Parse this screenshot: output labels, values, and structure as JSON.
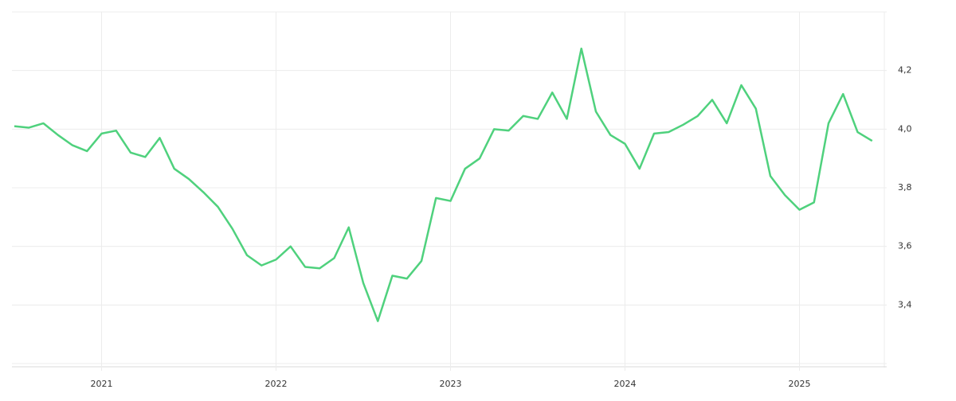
{
  "chart_data": {
    "type": "line",
    "x": [
      "2020-07",
      "2020-08",
      "2020-09",
      "2020-10",
      "2020-11",
      "2020-12",
      "2021-01",
      "2021-02",
      "2021-03",
      "2021-04",
      "2021-05",
      "2021-06",
      "2021-07",
      "2021-08",
      "2021-09",
      "2021-10",
      "2021-11",
      "2021-12",
      "2022-01",
      "2022-02",
      "2022-03",
      "2022-04",
      "2022-05",
      "2022-06",
      "2022-07",
      "2022-08",
      "2022-09",
      "2022-10",
      "2022-11",
      "2022-12",
      "2023-01",
      "2023-02",
      "2023-03",
      "2023-04",
      "2023-05",
      "2023-06",
      "2023-07",
      "2023-08",
      "2023-09",
      "2023-10",
      "2023-11",
      "2023-12",
      "2024-01",
      "2024-02",
      "2024-03",
      "2024-04",
      "2024-05",
      "2024-06",
      "2024-07",
      "2024-08",
      "2024-09",
      "2024-10",
      "2024-11",
      "2024-12",
      "2025-01",
      "2025-02",
      "2025-03",
      "2025-04",
      "2025-05",
      "2025-06"
    ],
    "series": [
      {
        "color": "#4fd17d",
        "values": [
          4.01,
          4.005,
          4.02,
          3.98,
          3.945,
          3.925,
          3.985,
          3.995,
          3.92,
          3.905,
          3.97,
          3.865,
          3.83,
          3.785,
          3.735,
          3.66,
          3.57,
          3.535,
          3.555,
          3.6,
          3.53,
          3.525,
          3.56,
          3.665,
          3.475,
          3.345,
          3.5,
          3.49,
          3.55,
          3.765,
          3.755,
          3.865,
          3.9,
          4.0,
          3.995,
          4.045,
          4.035,
          4.125,
          4.035,
          4.275,
          4.06,
          3.98,
          3.95,
          3.865,
          3.985,
          3.99,
          4.015,
          4.045,
          4.1,
          4.02,
          4.15,
          4.07,
          3.84,
          3.775,
          3.725,
          3.75,
          4.02,
          4.12,
          3.99,
          3.96
        ]
      }
    ],
    "xlim": [
      "2020-07",
      "2025-07"
    ],
    "xticks": [
      {
        "value": "2021-01",
        "label": "2021"
      },
      {
        "value": "2022-01",
        "label": "2022"
      },
      {
        "value": "2023-01",
        "label": "2023"
      },
      {
        "value": "2024-01",
        "label": "2024"
      },
      {
        "value": "2025-01",
        "label": "2025"
      }
    ],
    "ylim": [
      3.2,
      4.4
    ],
    "yticks": [
      {
        "value": 3.4,
        "label": "3,4"
      },
      {
        "value": 3.6,
        "label": "3,6"
      },
      {
        "value": 3.8,
        "label": "3,8"
      },
      {
        "value": 4.0,
        "label": "4,0"
      },
      {
        "value": 4.2,
        "label": "4,2"
      }
    ],
    "grid": true
  }
}
